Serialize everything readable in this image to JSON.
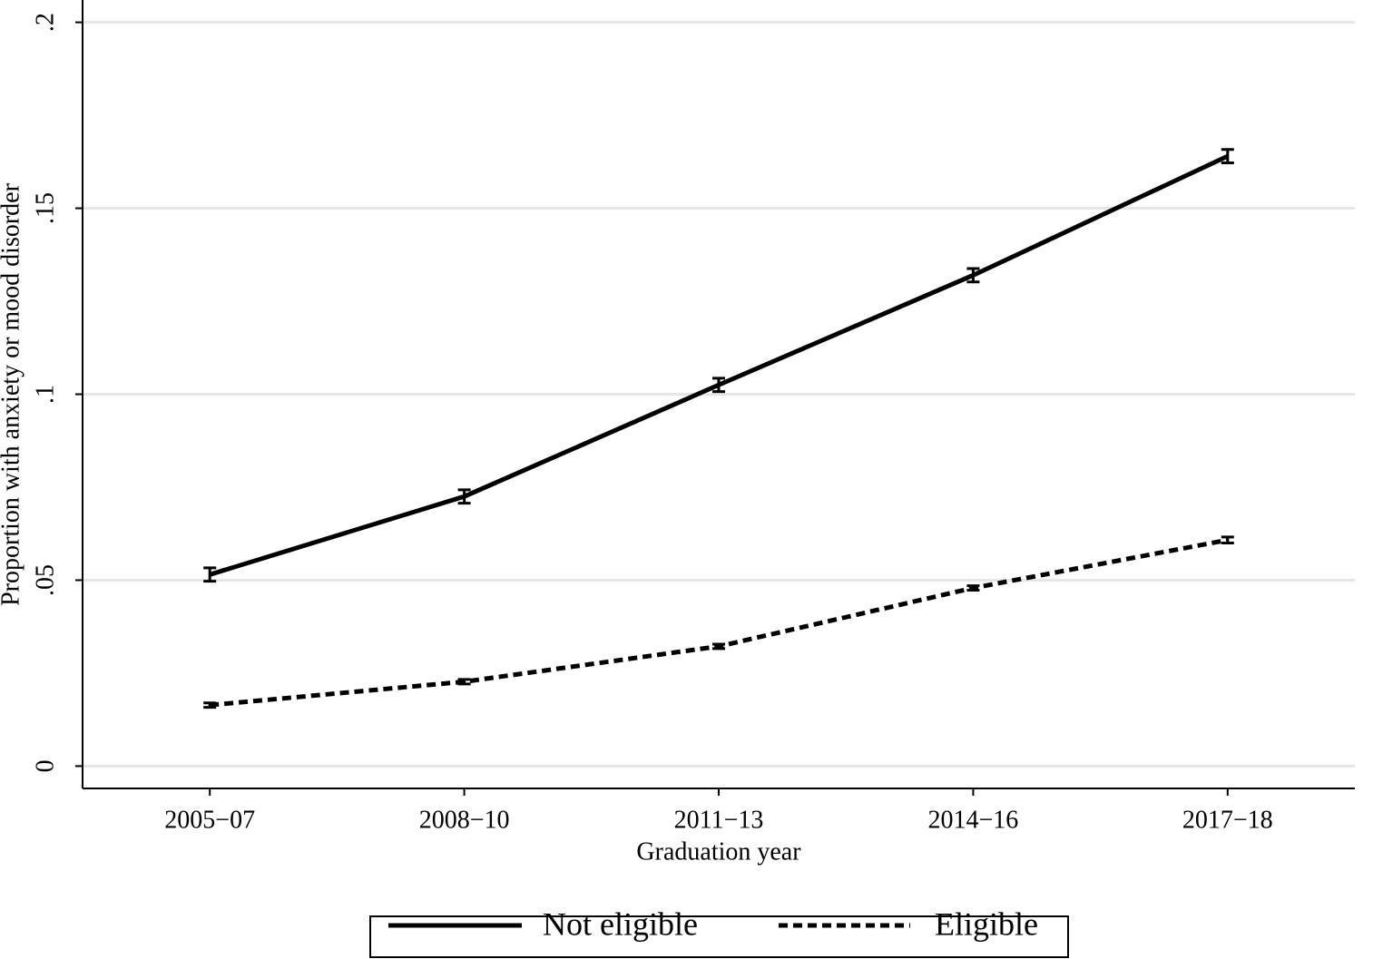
{
  "chart_data": {
    "type": "line",
    "x_label": "Graduation year",
    "y_label": "Proportion with anxiety or mood disorder",
    "categories": [
      "2005−07",
      "2008−10",
      "2011−13",
      "2014−16",
      "2017−18"
    ],
    "series": [
      {
        "name": "Not eligible",
        "color": "#000000",
        "dash": "solid",
        "values": [
          0.0515,
          0.0725,
          0.1025,
          0.132,
          0.164
        ],
        "errors": [
          0.0018,
          0.0018,
          0.0018,
          0.0018,
          0.0018
        ]
      },
      {
        "name": "Eligible",
        "color": "#000000",
        "dash": "dashed",
        "values": [
          0.0164,
          0.0227,
          0.0322,
          0.0479,
          0.0608
        ],
        "errors": [
          0.0006,
          0.0006,
          0.0006,
          0.0006,
          0.0008
        ]
      }
    ],
    "ylim": [
      -0.006,
      0.206
    ],
    "yticks": [
      0,
      {
        "value": 0.05,
        "label": ".05"
      },
      {
        "value": 0.1,
        "label": ".1"
      },
      {
        "value": 0.15,
        "label": ".15"
      },
      {
        "value": 0.2,
        "label": ".2"
      }
    ],
    "grid": true,
    "legend": "bottom"
  }
}
